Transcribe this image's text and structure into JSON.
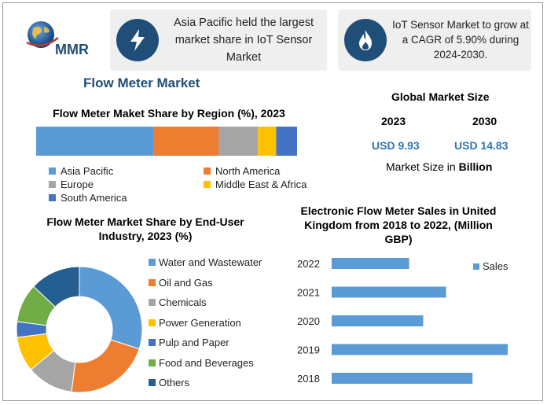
{
  "logo": {
    "text": "MMR"
  },
  "info_boxes": [
    {
      "text": "Asia Pacific held the largest market share in IoT Sensor Market",
      "icon": "lightning-icon"
    },
    {
      "text": "IoT Sensor Market to grow at a CAGR of 5.90% during 2024-2030.",
      "icon": "flame-icon"
    }
  ],
  "main_title": "Flow Meter Market",
  "global_market": {
    "title": "Global Market Size",
    "year1": "2023",
    "year2": "2030",
    "value1": "USD 9.93",
    "value2": "USD 14.83",
    "caption_prefix": "Market Size in ",
    "caption_bold": "Billion"
  },
  "colors": {
    "blue": "#5b9bd5",
    "orange": "#ed7d31",
    "gray": "#a5a5a5",
    "yellow": "#ffc000",
    "darkblue": "#4472c4",
    "green": "#70ad47",
    "navy": "#255e91",
    "accent": "#1f4e79",
    "value": "#2e75b6"
  },
  "chart_data": [
    {
      "type": "bar",
      "orientation": "horizontal-stacked",
      "title": "Flow Meter Maket Share by Region (%), 2023",
      "series": [
        {
          "name": "Asia Pacific",
          "value": 45,
          "color": "#5b9bd5"
        },
        {
          "name": "North America",
          "value": 25,
          "color": "#ed7d31"
        },
        {
          "name": "Europe",
          "value": 15,
          "color": "#a5a5a5"
        },
        {
          "name": "Middle East & Africa",
          "value": 7,
          "color": "#ffc000"
        },
        {
          "name": "South America",
          "value": 8,
          "color": "#4472c4"
        }
      ],
      "legend": "bottom"
    },
    {
      "type": "pie",
      "variant": "donut",
      "title": "Flow Meter Market Share by End-User Industry, 2023 (%)",
      "slices": [
        {
          "name": "Water and Wastewater",
          "value": 30,
          "color": "#5b9bd5"
        },
        {
          "name": "Oil and Gas",
          "value": 22,
          "color": "#ed7d31"
        },
        {
          "name": "Chemicals",
          "value": 12,
          "color": "#a5a5a5"
        },
        {
          "name": "Power Generation",
          "value": 9,
          "color": "#ffc000"
        },
        {
          "name": "Pulp and Paper",
          "value": 4,
          "color": "#4472c4"
        },
        {
          "name": "Food and Beverages",
          "value": 10,
          "color": "#70ad47"
        },
        {
          "name": "Others",
          "value": 13,
          "color": "#255e91"
        }
      ],
      "legend": "right"
    },
    {
      "type": "bar",
      "orientation": "horizontal",
      "title": "Electronic Flow Meter Sales in United Kingdom  from 2018 to 2022, (Million GBP)",
      "categories": [
        "2022",
        "2021",
        "2020",
        "2019",
        "2018"
      ],
      "series": [
        {
          "name": "Sales",
          "values": [
            44,
            65,
            52,
            100,
            80
          ],
          "color": "#5b9bd5"
        }
      ],
      "legend": "right",
      "xlim": [
        0,
        100
      ]
    }
  ]
}
